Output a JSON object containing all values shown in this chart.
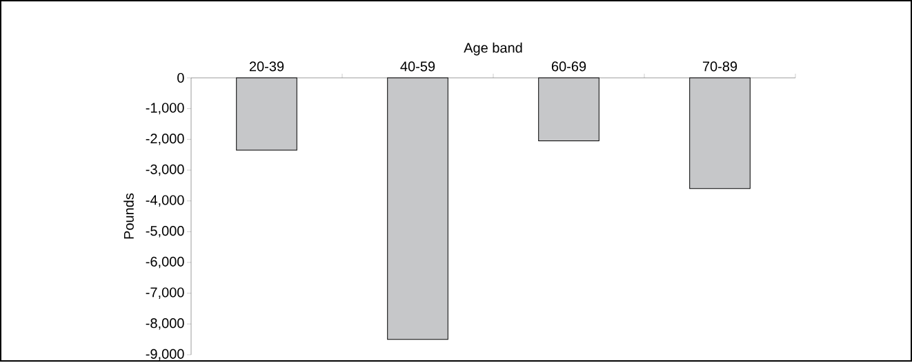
{
  "chart_data": {
    "type": "bar",
    "xlabel": "Age band",
    "ylabel": "Pounds",
    "categories": [
      "20-39",
      "40-59",
      "60-69",
      "70-89"
    ],
    "values": [
      -2350,
      -8500,
      -2050,
      -3600
    ],
    "color": "#c6c7c9",
    "ylim": [
      -9000,
      0
    ],
    "yticks": [
      0,
      {
        "value": -1000,
        "label": "-1,000"
      },
      {
        "value": -2000,
        "label": "-2,000"
      },
      {
        "value": -3000,
        "label": "-3,000"
      },
      {
        "value": -4000,
        "label": "-4,000"
      },
      {
        "value": -5000,
        "label": "-5,000"
      },
      {
        "value": -6000,
        "label": "-6,000"
      },
      {
        "value": -7000,
        "label": "-7,000"
      },
      {
        "value": -8000,
        "label": "-8,000"
      },
      {
        "value": -9000,
        "label": "-9,000"
      }
    ]
  }
}
